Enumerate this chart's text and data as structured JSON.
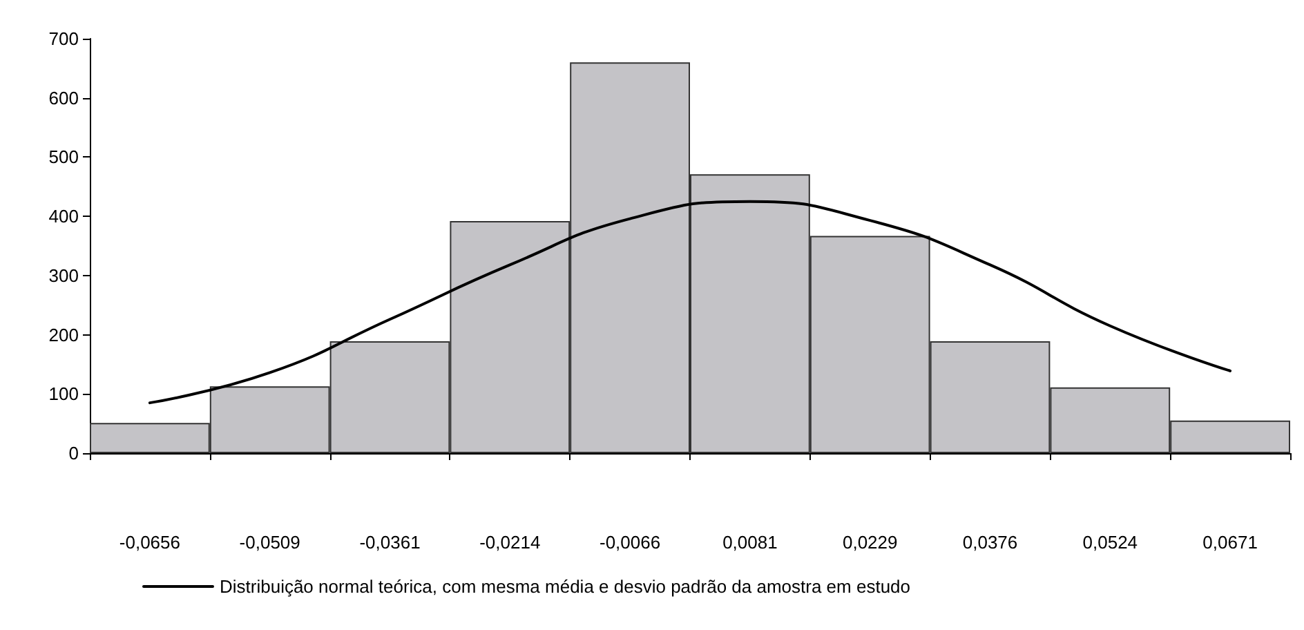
{
  "chart_data": {
    "type": "bar",
    "categories": [
      "-0,0656",
      "-0,0509",
      "-0,0361",
      "-0,0214",
      "-0,0066",
      "0,0081",
      "0,0229",
      "0,0376",
      "0,0524",
      "0,0671"
    ],
    "series": [
      {
        "color": "#c4c3c7",
        "values": [
          51,
          113,
          189,
          392,
          660,
          471,
          367,
          189,
          111,
          55
        ]
      },
      {
        "type": "line",
        "name": "Distribuição normal teórica, com mesma média e desvio padrão da amostra em estudo",
        "color": "#000000",
        "values": [
          85,
          136,
          226,
          318,
          396,
          425,
          393,
          318,
          215,
          139
        ]
      }
    ],
    "ylim": [
      0,
      700
    ],
    "yticks": [
      0,
      100,
      200,
      300,
      400,
      500,
      600,
      700
    ],
    "grid": false,
    "legend": "bottom",
    "marker": "none",
    "line_style": "solid"
  }
}
